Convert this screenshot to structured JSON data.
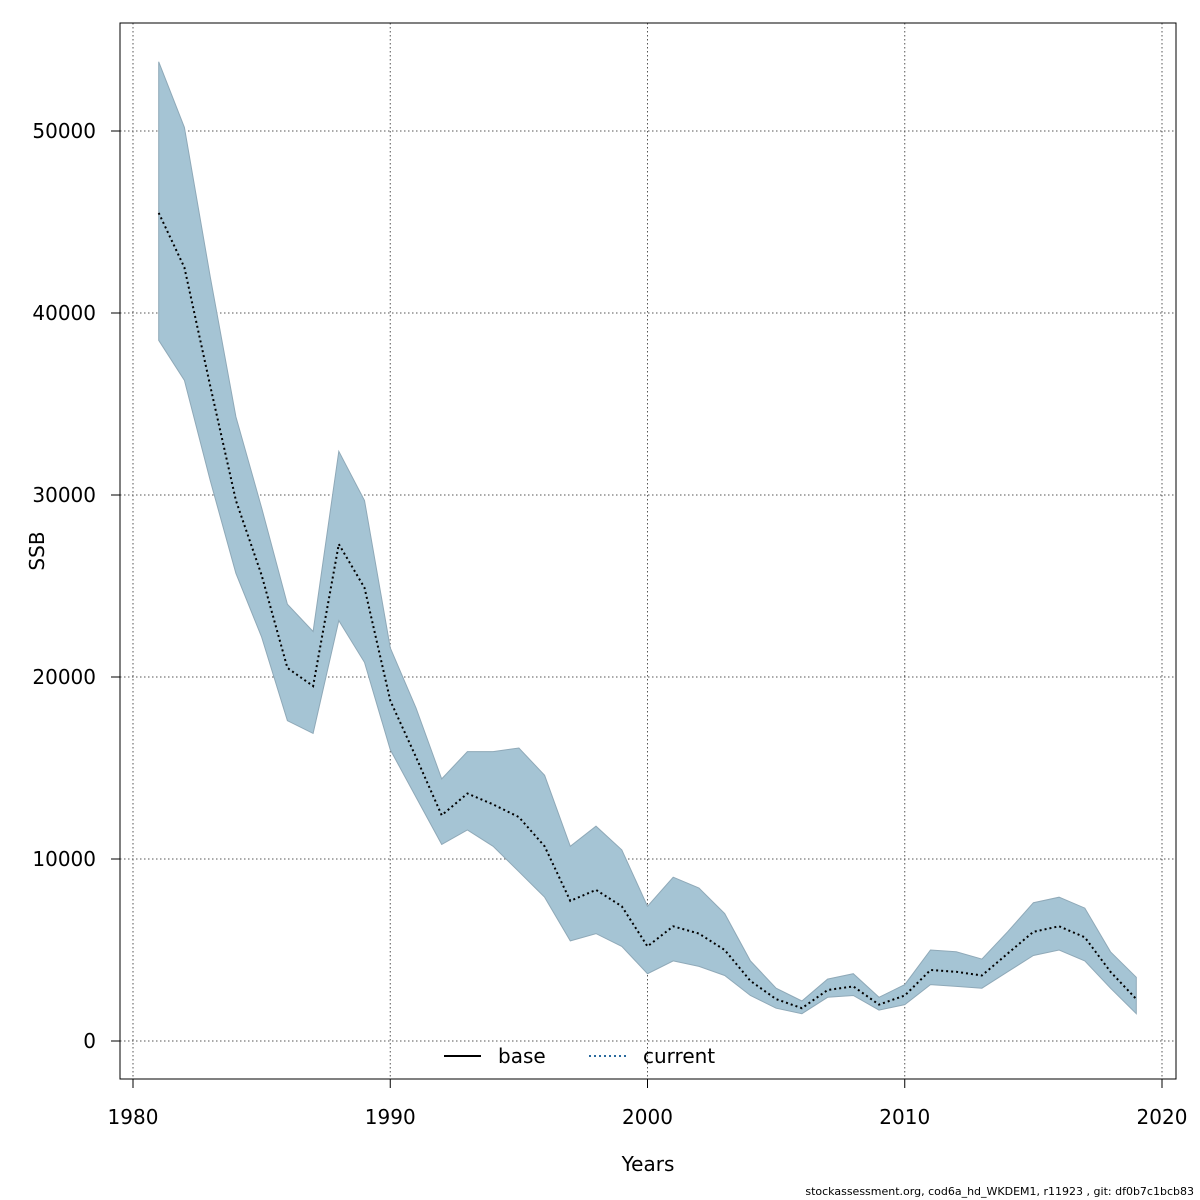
{
  "chart_data": {
    "type": "line",
    "title": "",
    "xlabel": "Years",
    "ylabel": "SSB",
    "xlim": [
      1980,
      2020
    ],
    "ylim": [
      0,
      56000
    ],
    "x_ticks": [
      1980,
      1990,
      2000,
      2010,
      2020
    ],
    "y_ticks": [
      0,
      10000,
      20000,
      30000,
      40000,
      50000
    ],
    "grid": true,
    "legend_position": "bottom",
    "band_color": "#a5c4d4",
    "band_edge_color": "#8fa9b8",
    "x": [
      1981,
      1982,
      1983,
      1984,
      1985,
      1986,
      1987,
      1988,
      1989,
      1990,
      1991,
      1992,
      1993,
      1994,
      1995,
      1996,
      1997,
      1998,
      1999,
      2000,
      2001,
      2002,
      2003,
      2004,
      2005,
      2006,
      2007,
      2008,
      2009,
      2010,
      2011,
      2012,
      2013,
      2014,
      2015,
      2016,
      2017,
      2018,
      2019
    ],
    "series": [
      {
        "name": "current",
        "style": "dotted",
        "color": "#000000",
        "values": [
          45500,
          42500,
          36000,
          29700,
          25600,
          20500,
          19500,
          27300,
          24900,
          18700,
          15600,
          12400,
          13600,
          13000,
          12300,
          10700,
          7700,
          8300,
          7400,
          5200,
          6300,
          5900,
          5000,
          3300,
          2300,
          1800,
          2800,
          3000,
          2000,
          2500,
          3900,
          3800,
          3600,
          4800,
          6000,
          6300,
          5700,
          3800,
          2300
        ]
      }
    ],
    "band": {
      "upper": [
        53800,
        50200,
        42000,
        34300,
        29300,
        24000,
        22500,
        32400,
        29700,
        21600,
        18300,
        14400,
        15900,
        15900,
        16100,
        14600,
        10700,
        11800,
        10500,
        7400,
        9000,
        8400,
        7000,
        4400,
        2900,
        2200,
        3400,
        3700,
        2400,
        3100,
        5000,
        4900,
        4500,
        6000,
        7600,
        7900,
        7300,
        4900,
        3500
      ],
      "lower": [
        38500,
        36300,
        30800,
        25700,
        22200,
        17600,
        16900,
        23100,
        20800,
        16000,
        13400,
        10800,
        11600,
        10700,
        9300,
        7900,
        5500,
        5900,
        5200,
        3700,
        4400,
        4100,
        3600,
        2500,
        1800,
        1500,
        2400,
        2500,
        1700,
        2000,
        3100,
        3000,
        2900,
        3800,
        4700,
        5000,
        4400,
        2900,
        1500
      ]
    },
    "legend": [
      {
        "label": "base",
        "style": "solid",
        "color": "#000000"
      },
      {
        "label": "current",
        "style": "dotted",
        "color": "#2a6a9e"
      }
    ]
  },
  "footer": "stockassessment.org, cod6a_hd_WKDEM1, r11923 , git: df0b7c1bcb83"
}
